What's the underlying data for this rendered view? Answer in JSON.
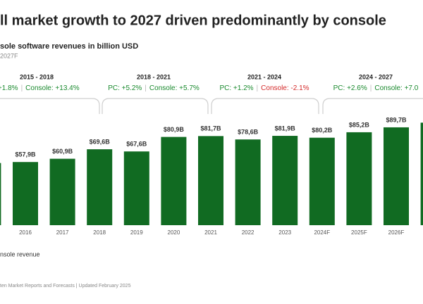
{
  "chart_data": {
    "type": "bar",
    "title": "ll market growth to 2027 driven predominantly by console",
    "subtitle": "sole software revenues in billion USD",
    "note": "2027F",
    "legend": "nsole revenue",
    "source": "ten Market Reports and Forecasts | Updated February 2025",
    "categories": [
      null,
      "2016",
      "2017",
      "2018",
      "2019",
      "2020",
      "2021",
      "2022",
      "2023",
      "2024F",
      "2025F",
      "2026F",
      null
    ],
    "values": [
      57,
      57.9,
      60.9,
      69.6,
      67.6,
      80.9,
      81.7,
      78.6,
      81.9,
      80.2,
      85.2,
      89.7,
      94
    ],
    "value_labels": [
      null,
      "$57,9B",
      "$60,9B",
      "$69,6B",
      "$67,6B",
      "$80,9B",
      "$81,7B",
      "$78,6B",
      "$81,9B",
      "$80,2B",
      "$85,2B",
      "$89,7B",
      null
    ],
    "color": "#116b22",
    "ylim": [
      0,
      100
    ],
    "periods": [
      {
        "range": "2015 - 2018",
        "pc": ": +1.8%",
        "pc_color": "#1a8a2e",
        "console": "Console: +13.4%",
        "console_color": "#1a8a2e"
      },
      {
        "range": "2018 - 2021",
        "pc": "PC: +5.2%",
        "pc_color": "#1a8a2e",
        "console": "Console: +5.7%",
        "console_color": "#1a8a2e"
      },
      {
        "range": "2021 - 2024",
        "pc": "PC: +1.2%",
        "pc_color": "#1a8a2e",
        "console": "Console: -2.1%",
        "console_color": "#d42a2a"
      },
      {
        "range": "2024 - 2027",
        "pc": "PC: +2.6%",
        "pc_color": "#1a8a2e",
        "console": "Console: +7.0",
        "console_color": "#1a8a2e"
      }
    ]
  }
}
